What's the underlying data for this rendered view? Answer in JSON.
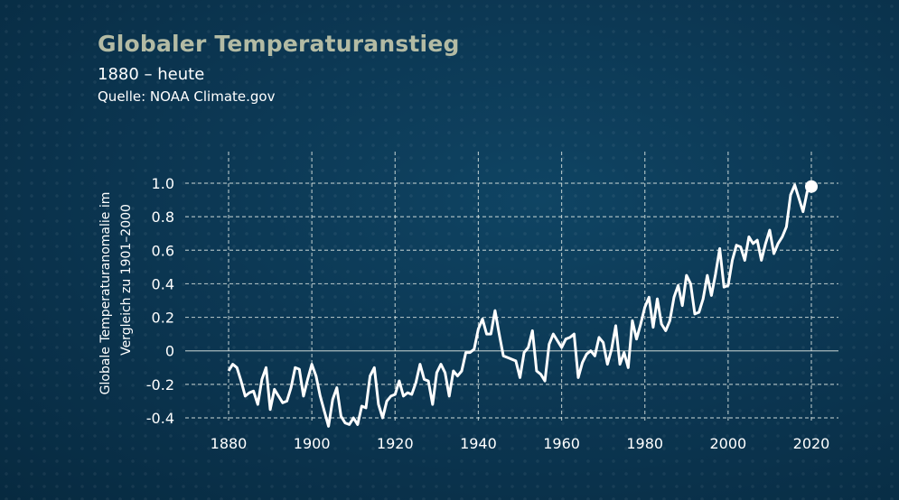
{
  "header": {
    "title": "Globaler Temperaturanstieg",
    "subtitle": "1880 – heute",
    "source": "Quelle: NOAA Climate.gov"
  },
  "colors": {
    "title": "#b3bba4",
    "background": "#0b3550",
    "line": "#ffffff"
  },
  "chart_data": {
    "type": "line",
    "title": "Globaler Temperaturanstieg",
    "ylabel_lines": [
      "Globale Temperaturanomalie im",
      "Vergleich zu 1901–2000"
    ],
    "xlabel": "",
    "xlim": [
      1880,
      2020
    ],
    "ylim": [
      -0.4,
      1.0
    ],
    "grid": true,
    "x_ticks": [
      1880,
      1900,
      1920,
      1940,
      1960,
      1980,
      2000,
      2020
    ],
    "x_tick_labels": [
      "1880",
      "1900",
      "1920",
      "1940",
      "1960",
      "1980",
      "2000",
      "2020"
    ],
    "y_ticks": [
      -0.4,
      -0.2,
      0,
      0.2,
      0.4,
      0.6,
      0.8,
      1.0
    ],
    "y_tick_labels": [
      "-0.4",
      "-0.2",
      "0",
      "0.2",
      "0.4",
      "0.6",
      "0.8",
      "1.0"
    ],
    "highlight_point": {
      "x": 2020,
      "y": 0.98
    },
    "series": [
      {
        "x_start": 1880,
        "values": [
          -0.12,
          -0.08,
          -0.1,
          -0.18,
          -0.27,
          -0.25,
          -0.24,
          -0.32,
          -0.17,
          -0.1,
          -0.35,
          -0.23,
          -0.27,
          -0.31,
          -0.3,
          -0.22,
          -0.1,
          -0.11,
          -0.27,
          -0.17,
          -0.08,
          -0.15,
          -0.27,
          -0.36,
          -0.45,
          -0.29,
          -0.22,
          -0.39,
          -0.43,
          -0.44,
          -0.4,
          -0.44,
          -0.33,
          -0.34,
          -0.15,
          -0.1,
          -0.32,
          -0.4,
          -0.3,
          -0.27,
          -0.26,
          -0.18,
          -0.27,
          -0.25,
          -0.26,
          -0.19,
          -0.08,
          -0.17,
          -0.18,
          -0.32,
          -0.13,
          -0.08,
          -0.13,
          -0.27,
          -0.12,
          -0.15,
          -0.12,
          -0.01,
          -0.01,
          0.01,
          0.13,
          0.19,
          0.1,
          0.1,
          0.24,
          0.1,
          -0.03,
          -0.04,
          -0.05,
          -0.06,
          -0.16,
          -0.01,
          0.02,
          0.12,
          -0.12,
          -0.14,
          -0.18,
          0.04,
          0.1,
          0.06,
          0.02,
          0.07,
          0.08,
          0.1,
          -0.16,
          -0.07,
          -0.02,
          0.0,
          -0.03,
          0.08,
          0.05,
          -0.08,
          0.01,
          0.15,
          -0.08,
          -0.01,
          -0.1,
          0.18,
          0.07,
          0.16,
          0.26,
          0.32,
          0.14,
          0.31,
          0.16,
          0.12,
          0.18,
          0.32,
          0.39,
          0.27,
          0.45,
          0.4,
          0.22,
          0.23,
          0.31,
          0.45,
          0.33,
          0.46,
          0.61,
          0.38,
          0.39,
          0.54,
          0.63,
          0.62,
          0.54,
          0.68,
          0.64,
          0.66,
          0.54,
          0.64,
          0.72,
          0.58,
          0.64,
          0.68,
          0.74,
          0.93,
          0.99,
          0.91,
          0.83,
          0.95,
          0.98
        ]
      }
    ]
  }
}
